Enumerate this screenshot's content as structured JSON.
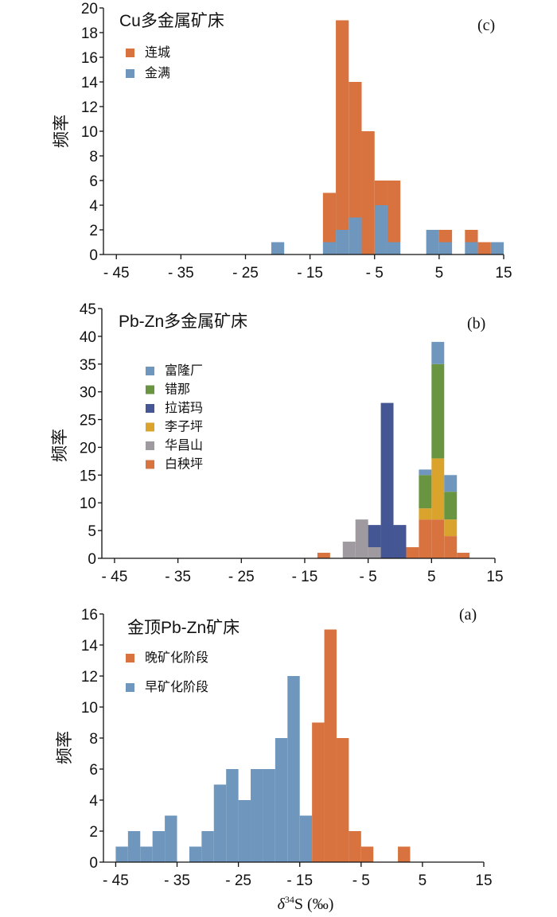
{
  "colors": {
    "orange": "#D8733F",
    "blue_light": "#6F97BD",
    "green": "#699440",
    "navy": "#445694",
    "gold": "#DAA32C",
    "gray": "#9E9A9F"
  },
  "chart_data": [
    {
      "id": "c",
      "type": "bar",
      "stacked": true,
      "title": "Cu多金属矿床",
      "panel_label": "(c)",
      "ylabel": "频率",
      "xlabel": "",
      "xlim": [
        -47,
        15
      ],
      "ylim": [
        0,
        20
      ],
      "xticks": [
        -45,
        -35,
        -25,
        -15,
        -5,
        5,
        15
      ],
      "xtick_labels": [
        "- 45",
        "- 35",
        "- 25",
        "- 15",
        "- 5",
        "5",
        "15"
      ],
      "yticks": [
        0,
        2,
        4,
        6,
        8,
        10,
        12,
        14,
        16,
        18,
        20
      ],
      "bin_width": 2,
      "bin_starts": [
        -21,
        -13,
        -11,
        -9,
        -7,
        -5,
        -3,
        -1,
        3,
        5,
        9,
        11,
        13
      ],
      "legend": [
        "连城",
        "金满"
      ],
      "series": [
        {
          "name": "金满",
          "color": "#6F97BD",
          "values": [
            1,
            1,
            2,
            3,
            0,
            4,
            1,
            0,
            2,
            1,
            1,
            0,
            1
          ]
        },
        {
          "name": "连城",
          "color": "#D8733F",
          "values": [
            0,
            4,
            17,
            11,
            10,
            2,
            5,
            0,
            0,
            1,
            1,
            1,
            0
          ]
        }
      ]
    },
    {
      "id": "b",
      "type": "bar",
      "stacked": true,
      "title": "Pb-Zn多金属矿床",
      "panel_label": "(b)",
      "ylabel": "频率",
      "xlabel": "",
      "xlim": [
        -47,
        15
      ],
      "ylim": [
        0,
        45
      ],
      "xticks": [
        -45,
        -35,
        -25,
        -15,
        -5,
        5,
        15
      ],
      "xtick_labels": [
        "- 45",
        "- 35",
        "- 25",
        "- 15",
        "- 5",
        "5",
        "15"
      ],
      "yticks": [
        0,
        5,
        10,
        15,
        20,
        25,
        30,
        35,
        40,
        45
      ],
      "bin_width": 2,
      "bin_starts": [
        -13,
        -9,
        -7,
        -5,
        -3,
        -1,
        1,
        3,
        5,
        7,
        9
      ],
      "legend": [
        "富隆厂",
        "错那",
        "拉诺玛",
        "李子坪",
        "华昌山",
        "白秧坪"
      ],
      "series": [
        {
          "name": "白秧坪",
          "color": "#D8733F",
          "values": [
            1,
            0,
            0,
            0,
            0,
            0,
            2,
            7,
            7,
            4,
            1
          ]
        },
        {
          "name": "华昌山",
          "color": "#9E9A9F",
          "values": [
            0,
            3,
            7,
            2,
            0,
            0,
            0,
            0,
            0,
            0,
            0
          ]
        },
        {
          "name": "拉诺玛",
          "color": "#445694",
          "values": [
            0,
            0,
            0,
            4,
            28,
            6,
            0,
            0,
            0,
            0,
            0
          ]
        },
        {
          "name": "李子坪",
          "color": "#DAA32C",
          "values": [
            0,
            0,
            0,
            0,
            0,
            0,
            0,
            2,
            11,
            3,
            0
          ]
        },
        {
          "name": "错那",
          "color": "#699440",
          "values": [
            0,
            0,
            0,
            0,
            0,
            0,
            0,
            6,
            17,
            5,
            0
          ]
        },
        {
          "name": "富隆厂",
          "color": "#6F97BD",
          "values": [
            0,
            0,
            0,
            0,
            0,
            0,
            0,
            1,
            4,
            3,
            0
          ]
        }
      ]
    },
    {
      "id": "a",
      "type": "bar",
      "stacked": true,
      "title": "金顶Pb-Zn矿床",
      "panel_label": "(a)",
      "ylabel": "频率",
      "xlabel": "δ³⁴S (‰)",
      "xlabel_parts": [
        "δ",
        "34",
        "S (‰)"
      ],
      "xlim": [
        -47,
        15
      ],
      "ylim": [
        0,
        16
      ],
      "xticks": [
        -45,
        -35,
        -25,
        -15,
        -5,
        5,
        15
      ],
      "xtick_labels": [
        "- 45",
        "- 35",
        "- 25",
        "- 15",
        "- 5",
        "5",
        "15"
      ],
      "yticks": [
        0,
        2,
        4,
        6,
        8,
        10,
        12,
        14,
        16
      ],
      "bin_width": 2,
      "bin_starts": [
        -45,
        -43,
        -41,
        -39,
        -37,
        -35,
        -33,
        -31,
        -29,
        -27,
        -25,
        -23,
        -21,
        -19,
        -17,
        -15,
        -13,
        -11,
        -9,
        -7,
        -5,
        -3,
        1
      ],
      "legend": [
        "晚矿化阶段",
        "早矿化阶段"
      ],
      "series": [
        {
          "name": "早矿化阶段",
          "color": "#6F97BD",
          "values": [
            1,
            2,
            1,
            2,
            3,
            0,
            1,
            2,
            5,
            6,
            4,
            6,
            6,
            8,
            12,
            3,
            0,
            0,
            0,
            0,
            0,
            0,
            0
          ]
        },
        {
          "name": "晚矿化阶段",
          "color": "#D8733F",
          "values": [
            0,
            0,
            0,
            0,
            0,
            0,
            0,
            0,
            0,
            0,
            0,
            0,
            0,
            0,
            0,
            0,
            9,
            15,
            8,
            2,
            1,
            0,
            1
          ]
        }
      ]
    }
  ]
}
